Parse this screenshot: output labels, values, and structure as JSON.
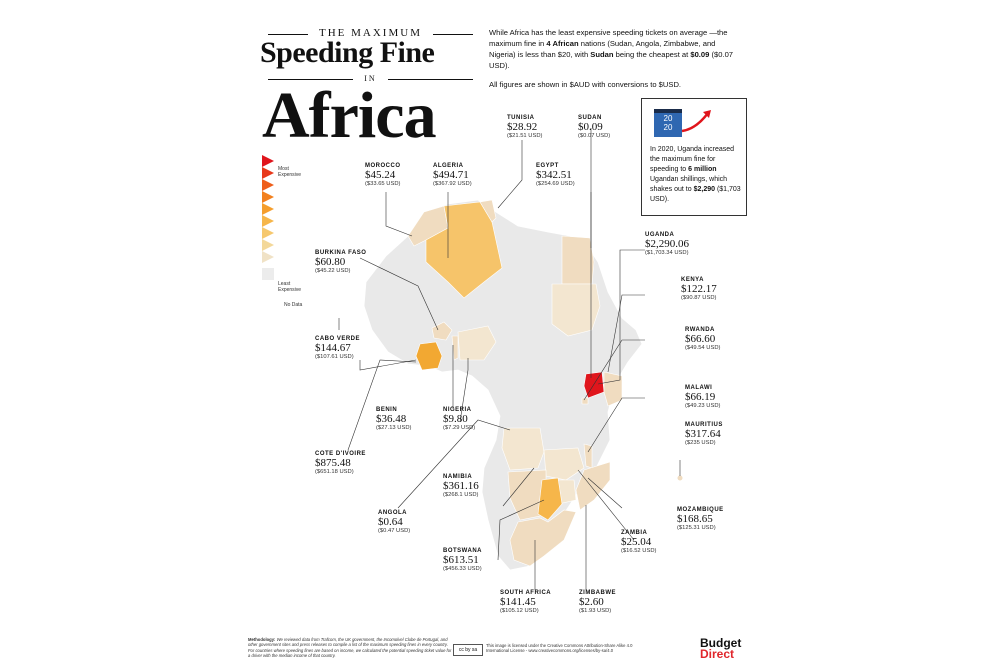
{
  "title": {
    "the": "THE MAXIMUM",
    "line1": "Speeding Fine",
    "in": "IN",
    "line2": "Africa"
  },
  "intro": {
    "p1_a": "While Africa has the least expensive speeding tickets on average —the maximum fine in ",
    "p1_b": "4 African",
    "p1_c": " nations (Sudan, Angola, Zimbabwe, and Nigeria) is less than $20, with ",
    "p1_d": "Sudan",
    "p1_e": " being the cheapest at ",
    "p1_f": "$0.09",
    "p1_g": " ($0.07 USD).",
    "p2": "All figures are shown in $AUD with conversions to $USD."
  },
  "callout": {
    "year_top": "20",
    "year_bottom": "20",
    "t1": "In 2020, Uganda increased the maximum fine for speeding to ",
    "t2": "6 million",
    "t3": " Ugandan shillings, which shakes out to ",
    "t4": "$2,290",
    "t5": " ($1,703 USD)."
  },
  "legend": {
    "most": "Most Expensive",
    "least": "Least Expensive",
    "nodata": "No Data"
  },
  "countries": [
    {
      "name": "TUNISIA",
      "aud": "$28.92",
      "usd": "($21.51 USD)"
    },
    {
      "name": "SUDAN",
      "aud": "$0.09",
      "usd": "($0.07 USD)"
    },
    {
      "name": "MOROCCO",
      "aud": "$45.24",
      "usd": "($33.65 USD)"
    },
    {
      "name": "ALGERIA",
      "aud": "$494.71",
      "usd": "($367.92 USD)"
    },
    {
      "name": "EGYPT",
      "aud": "$342.51",
      "usd": "($254.69 USD)"
    },
    {
      "name": "UGANDA",
      "aud": "$2,290.06",
      "usd": "($1,703.34 USD)"
    },
    {
      "name": "BURKINA FASO",
      "aud": "$60.80",
      "usd": "($45.22 USD)"
    },
    {
      "name": "KENYA",
      "aud": "$122.17",
      "usd": "($90.87 USD)"
    },
    {
      "name": "CABO VERDE",
      "aud": "$144.67",
      "usd": "($107.61 USD)"
    },
    {
      "name": "RWANDA",
      "aud": "$66.60",
      "usd": "($49.54 USD)"
    },
    {
      "name": "MALAWI",
      "aud": "$66.19",
      "usd": "($49.23 USD)"
    },
    {
      "name": "BENIN",
      "aud": "$36.48",
      "usd": "($27.13 USD)"
    },
    {
      "name": "NIGERIA",
      "aud": "$9.80",
      "usd": "($7.29 USD)"
    },
    {
      "name": "MAURITIUS",
      "aud": "$317.64",
      "usd": "($235 USD)"
    },
    {
      "name": "COTE D'IVOIRE",
      "aud": "$875.48",
      "usd": "($651.18 USD)"
    },
    {
      "name": "NAMIBIA",
      "aud": "$361.16",
      "usd": "($268.1 USD)"
    },
    {
      "name": "MOZAMBIQUE",
      "aud": "$168.65",
      "usd": "($125.31 USD)"
    },
    {
      "name": "ANGOLA",
      "aud": "$0.64",
      "usd": "($0.47 USD)"
    },
    {
      "name": "ZAMBIA",
      "aud": "$25.04",
      "usd": "($16.52 USD)"
    },
    {
      "name": "BOTSWANA",
      "aud": "$613.51",
      "usd": "($456.33 USD)"
    },
    {
      "name": "SOUTH AFRICA",
      "aud": "$141.45",
      "usd": "($105.12 USD)"
    },
    {
      "name": "ZIMBABWE",
      "aud": "$2.60",
      "usd": "($1.93 USD)"
    }
  ],
  "colors": {
    "most": "#e0151c",
    "high": "#f28a1e",
    "mid": "#f6c46a",
    "low": "#f0dcc0",
    "nodata": "#ececec"
  },
  "footer": {
    "methodology_label": "Methodology:",
    "methodology": " We reviewed data from Trafcom, the UK government, the Incomolvel Clube de Portugal, and other government sites and press releases to compile a list of the maximum speeding fines in every country. For countries where speeding fines are based on income, we calculated the potential speeding ticket value for a driver with the median income of that country.",
    "cc": "cc by sa",
    "license": "This image is licensed under the Creative Commons Attribution-Share Alike 4.0 International License - www.creativecommons.org/licenses/by-sa/4.0",
    "brand1": "Budget",
    "brand2": "Direct"
  }
}
